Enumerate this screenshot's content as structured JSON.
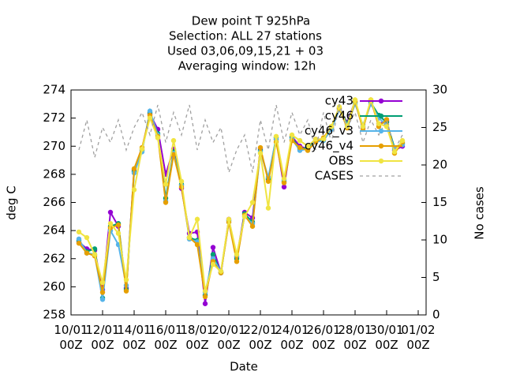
{
  "chart_data": {
    "type": "line",
    "title": [
      "Dew point T 925hPa",
      "Selection: ALL      27 stations",
      "Used  03,06,09,15,21  + 03",
      "Averaging window: 12h"
    ],
    "xlabel": "Date",
    "ylabel": "deg C",
    "y2label": "No cases",
    "xlim": [
      "10/01 00Z",
      "01/02 12Z"
    ],
    "xticks": [
      "10/01 00Z",
      "12/01 00Z",
      "14/01 00Z",
      "16/01 00Z",
      "18/01 00Z",
      "20/01 00Z",
      "22/01 00Z",
      "24/01 00Z",
      "26/01 00Z",
      "28/01 00Z",
      "30/01 00Z",
      "01/02 00Z"
    ],
    "ylim": [
      258,
      274
    ],
    "yticks": [
      258,
      260,
      262,
      264,
      266,
      268,
      270,
      272,
      274
    ],
    "y2lim": [
      0,
      30
    ],
    "y2ticks": [
      0,
      5,
      10,
      15,
      20,
      25,
      30
    ],
    "x": [
      "10/01 12Z",
      "11/01 00Z",
      "11/01 12Z",
      "12/01 00Z",
      "12/01 12Z",
      "13/01 00Z",
      "13/01 12Z",
      "14/01 00Z",
      "14/01 12Z",
      "15/01 00Z",
      "15/01 12Z",
      "16/01 00Z",
      "16/01 12Z",
      "17/01 00Z",
      "17/01 12Z",
      "18/01 00Z",
      "18/01 12Z",
      "19/01 00Z",
      "19/01 12Z",
      "20/01 00Z",
      "20/01 12Z",
      "21/01 00Z",
      "21/01 12Z",
      "22/01 00Z",
      "22/01 12Z",
      "23/01 00Z",
      "23/01 12Z",
      "24/01 00Z",
      "24/01 12Z",
      "25/01 00Z",
      "25/01 12Z",
      "26/01 00Z",
      "26/01 12Z",
      "27/01 00Z",
      "27/01 12Z",
      "28/01 00Z",
      "28/01 12Z",
      "29/01 00Z",
      "29/01 12Z",
      "30/01 00Z",
      "30/01 12Z",
      "31/01 00Z"
    ],
    "series": [
      {
        "name": "cy43",
        "color": "#9400d3",
        "values": [
          263.2,
          262.7,
          262.6,
          259.8,
          265.3,
          264.3,
          259.9,
          268.3,
          269.8,
          272.3,
          271.2,
          268.0,
          269.8,
          267.0,
          263.8,
          263.9,
          258.8,
          262.8,
          261.0,
          264.8,
          262.1,
          265.3,
          264.9,
          269.8,
          267.6,
          270.5,
          267.1,
          270.7,
          270.0,
          269.8,
          270.5,
          270.5,
          271.3,
          272.6,
          271.7,
          273.2,
          271.3,
          273.2,
          271.6,
          271.8,
          269.7,
          270.0
        ]
      },
      {
        "name": "cy46",
        "color": "#009e73",
        "values": [
          263.3,
          262.5,
          262.7,
          259.2,
          264.3,
          264.5,
          259.8,
          268.2,
          269.7,
          272.4,
          270.9,
          266.3,
          269.6,
          267.3,
          263.5,
          263.3,
          259.4,
          262.3,
          261.0,
          264.7,
          262.0,
          265.2,
          264.6,
          269.7,
          267.7,
          270.6,
          267.5,
          270.6,
          269.8,
          269.9,
          270.4,
          270.5,
          271.3,
          272.7,
          271.6,
          273.1,
          271.4,
          273.1,
          272.2,
          271.7,
          269.9,
          270.2
        ]
      },
      {
        "name": "cy46_v3",
        "color": "#56b4e9",
        "values": [
          263.4,
          262.4,
          262.3,
          259.1,
          264.0,
          263.0,
          260.1,
          268.1,
          269.6,
          272.5,
          270.8,
          266.1,
          269.5,
          267.2,
          263.4,
          263.2,
          259.6,
          262.0,
          261.1,
          264.6,
          262.2,
          265.0,
          264.5,
          269.6,
          267.8,
          270.5,
          267.6,
          270.5,
          269.7,
          269.8,
          270.3,
          270.4,
          271.2,
          272.6,
          271.5,
          273.0,
          271.5,
          273.0,
          272.0,
          271.5,
          269.8,
          270.1
        ]
      },
      {
        "name": "cy46_v4",
        "color": "#e69f00",
        "values": [
          263.1,
          262.4,
          262.2,
          259.6,
          264.2,
          264.4,
          259.7,
          268.4,
          269.9,
          272.2,
          270.7,
          266.0,
          269.4,
          267.1,
          263.5,
          263.0,
          259.3,
          261.8,
          261.0,
          264.6,
          261.8,
          265.1,
          264.3,
          269.9,
          267.5,
          270.3,
          267.4,
          270.4,
          269.9,
          269.7,
          270.3,
          270.6,
          271.4,
          272.7,
          271.3,
          273.2,
          271.2,
          273.3,
          271.4,
          271.9,
          269.5,
          270.3
        ]
      },
      {
        "name": "OBS",
        "color": "#f0e442",
        "values": [
          263.9,
          263.5,
          262.3,
          260.3,
          264.5,
          263.8,
          260.5,
          266.9,
          269.8,
          272.0,
          270.6,
          267.3,
          270.4,
          267.5,
          263.5,
          264.8,
          259.7,
          261.6,
          261.1,
          264.8,
          262.3,
          265.0,
          266.0,
          269.5,
          265.6,
          270.7,
          267.7,
          270.8,
          270.4,
          270.0,
          270.5,
          270.5,
          271.4,
          272.8,
          271.4,
          273.3,
          271.4,
          273.3,
          271.6,
          271.4,
          269.6,
          270.4
        ]
      },
      {
        "name": "CASES",
        "color": "#a0a0a0",
        "axis": "y2",
        "dashed": true,
        "values": [
          22,
          26,
          21,
          25,
          23,
          26,
          22,
          25,
          27,
          24,
          28,
          23,
          27,
          24,
          28,
          22,
          26,
          23,
          25,
          19,
          22,
          24,
          19,
          26,
          22,
          28,
          23,
          27,
          24,
          26,
          22,
          27,
          23,
          28,
          25,
          27,
          23,
          26,
          24,
          26,
          22,
          24
        ]
      }
    ]
  }
}
